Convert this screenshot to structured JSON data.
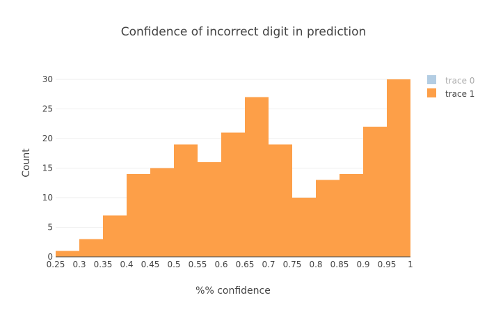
{
  "chart_data": {
    "type": "bar",
    "title": "Confidence of incorrect digit in prediction",
    "xlabel": "%% confidence",
    "ylabel": "Count",
    "xlim": [
      0.25,
      1.0
    ],
    "ylim": [
      0,
      30
    ],
    "xticks": [
      "0.25",
      "0.3",
      "0.35",
      "0.4",
      "0.45",
      "0.5",
      "0.55",
      "0.6",
      "0.65",
      "0.7",
      "0.75",
      "0.8",
      "0.85",
      "0.9",
      "0.95",
      "1"
    ],
    "yticks": [
      "0",
      "5",
      "10",
      "15",
      "20",
      "25",
      "30"
    ],
    "bin_size": 0.05,
    "grid": true,
    "legend_position": "top-right",
    "series": [
      {
        "name": "trace 0",
        "color": "#b3cde3",
        "visible": false,
        "bins": [],
        "values": []
      },
      {
        "name": "trace 1",
        "color": "#fd9f48",
        "visible": true,
        "bins": [
          0.25,
          0.3,
          0.35,
          0.4,
          0.45,
          0.5,
          0.55,
          0.6,
          0.65,
          0.7,
          0.75,
          0.8,
          0.85,
          0.9,
          0.95
        ],
        "values": [
          1,
          3,
          7,
          14,
          15,
          19,
          16,
          21,
          27,
          19,
          10,
          13,
          14,
          22,
          30
        ]
      }
    ]
  }
}
